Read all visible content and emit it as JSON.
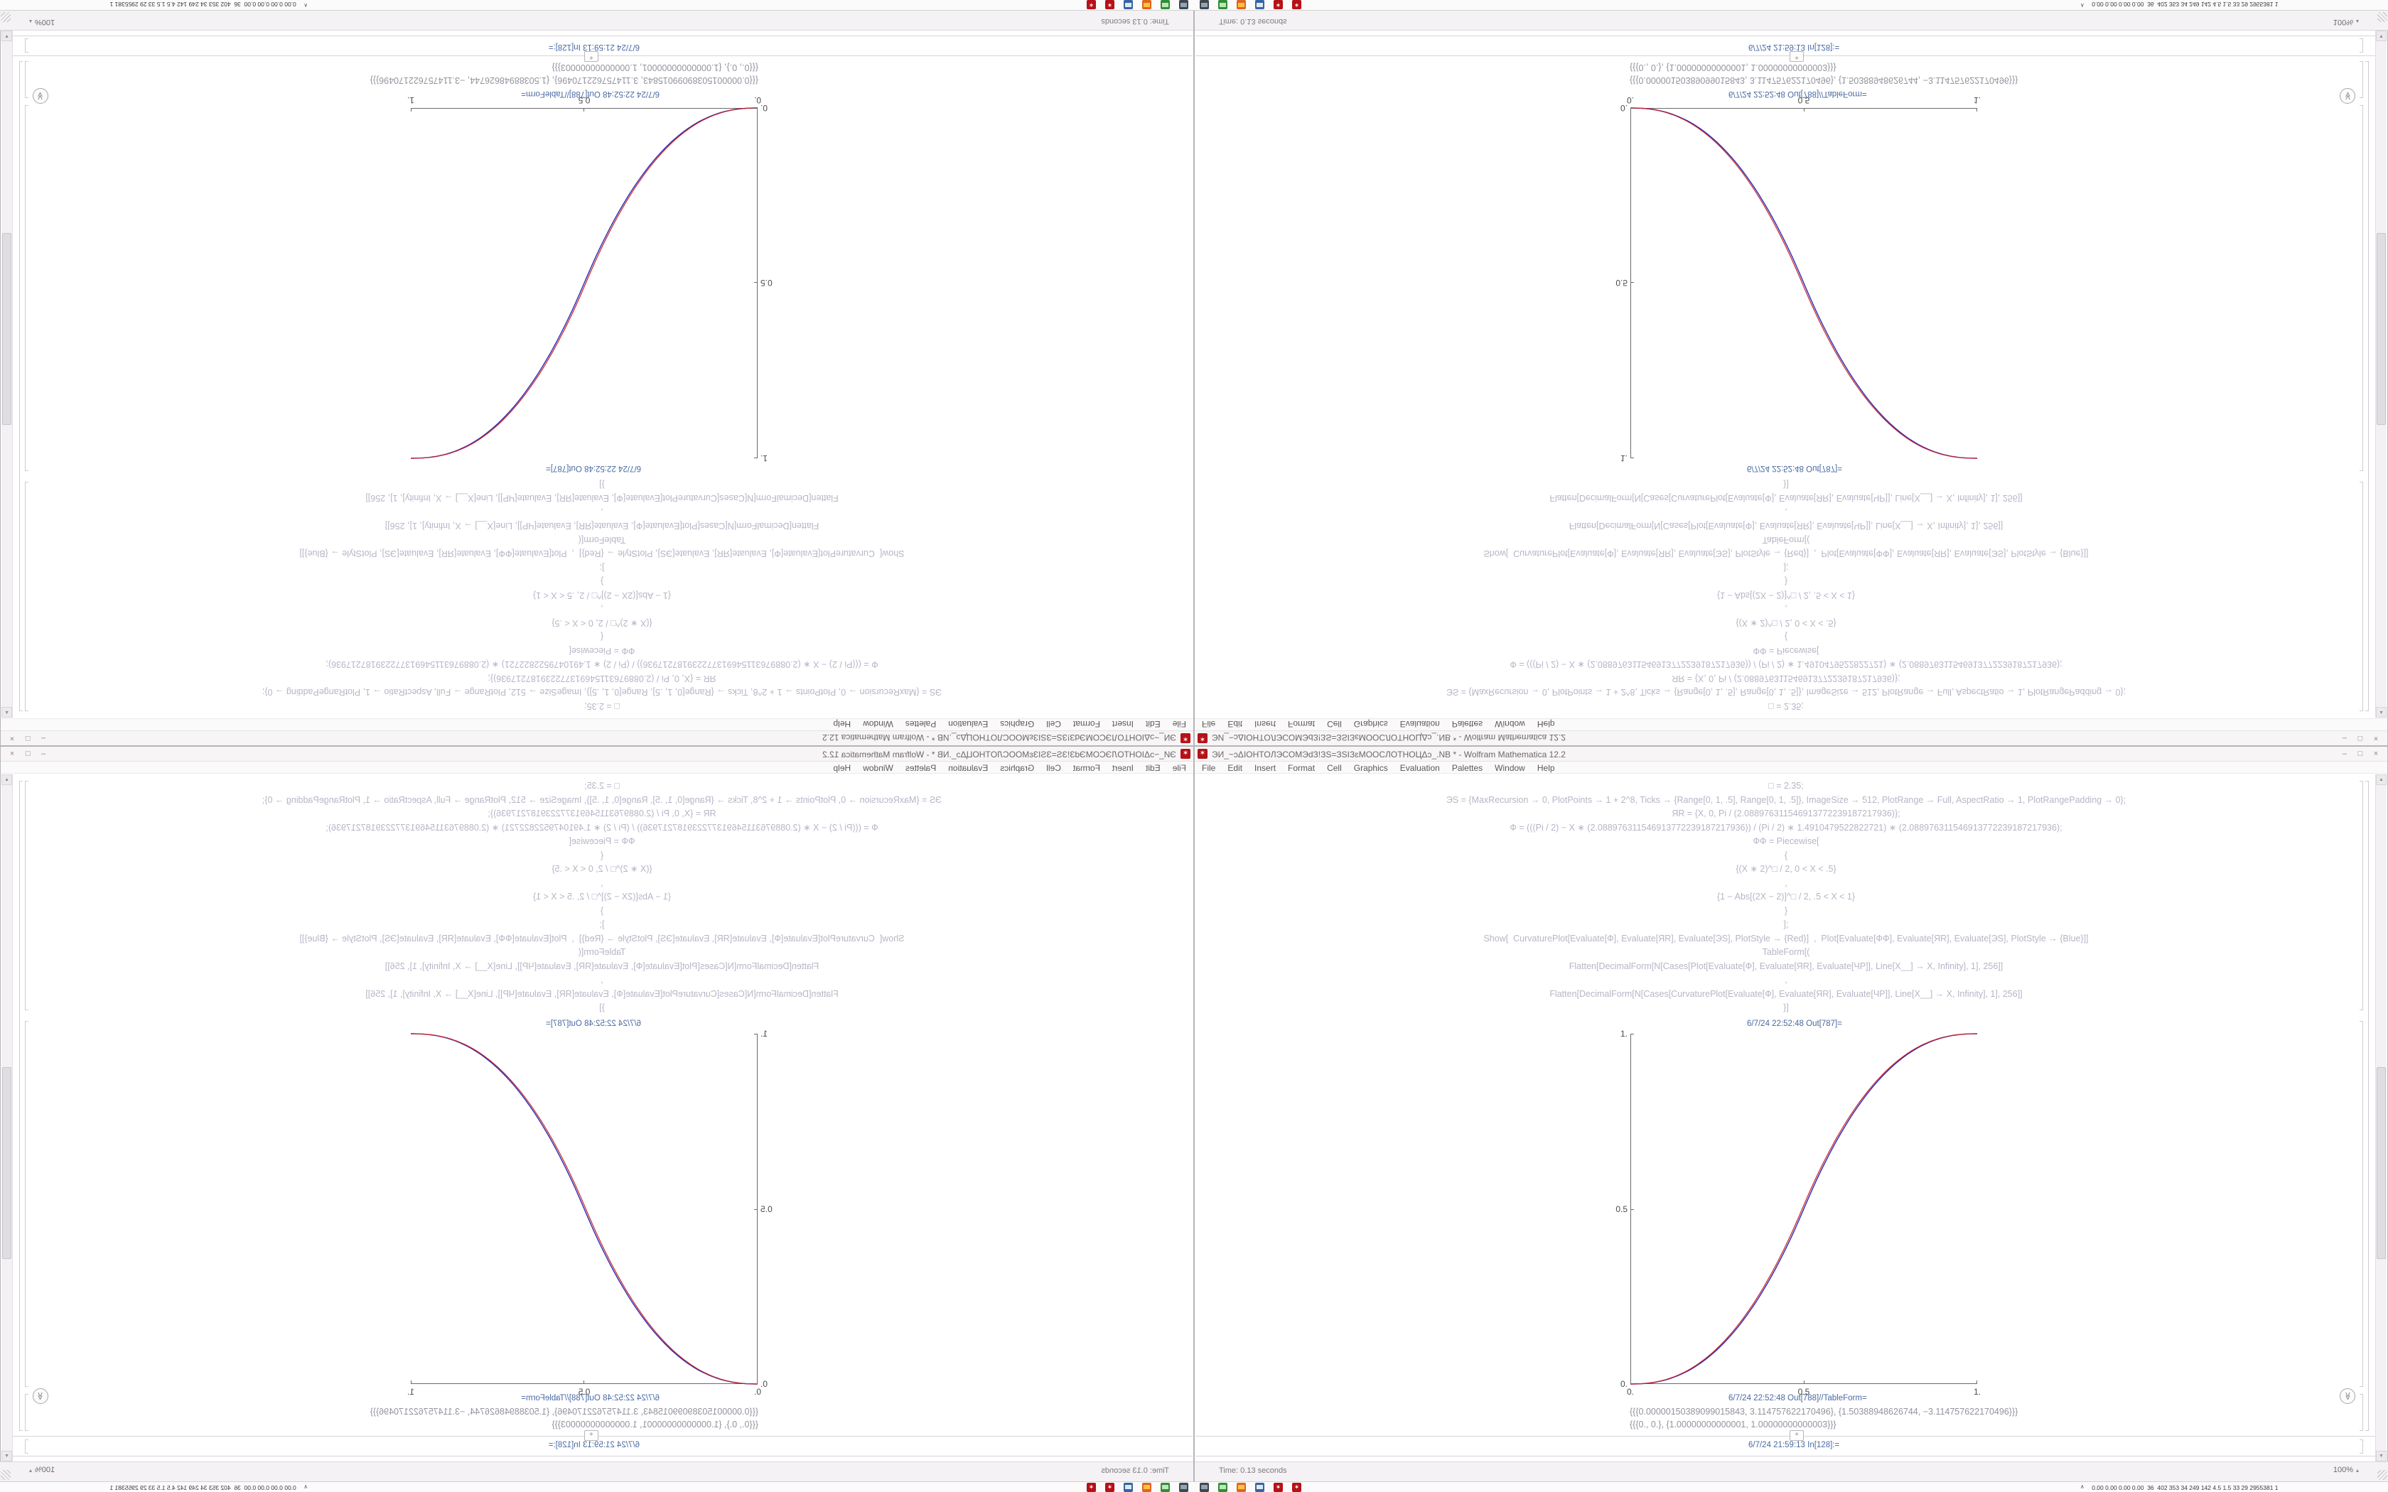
{
  "window": {
    "title": "ЭИ_~ɔΔIOHTOЛЭCOMЭdЗ!ЗS=ЗSIЗɛMOOCЛOTHOЦΔɔ_.NB * - Wolfram Mathematica 12.2",
    "menu": [
      "File",
      "Edit",
      "Insert",
      "Format",
      "Cell",
      "Graphics",
      "Evaluation",
      "Palettes",
      "Window",
      "Help"
    ],
    "controls": {
      "minimize": "–",
      "maximize": "□",
      "close": "×"
    }
  },
  "notebook": {
    "input_lines": [
      "□ = 2.35;",
      "ЭS = {MaxRecursion → 0, PlotPoints → 1 + 2^8, Ticks → {Range[0, 1, .5], Range[0, 1, .5]}, ImageSize → 512, PlotRange → Full, AspectRatio → 1, PlotRangePadding → 0};",
      "ЯR = {X, 0, Pi / (2.088976311546913772239187217936)};",
      "Ф = (((Pi / 2) − X ∗ (2.088976311546913772239187217936)) / (Pi / 2) ∗ 1.4910479522822721) ∗ (2.088976311546913772239187217936);",
      "ФФ = Piecewise[",
      "{",
      "{(X ∗ 2)^□ / 2, 0 < X < .5}",
      ",",
      "{1 − Abs[(2X − 2)]^□ / 2, .5 < X < 1}",
      "}",
      "];",
      "Show[  CurvaturePlot[Evaluate[Ф], Evaluate[ЯR], Evaluate[ЭS], PlotStyle → {Red}]  ,  Plot[Evaluate[ФФ], Evaluate[ЯR], Evaluate[ЭS], PlotStyle → {Blue}]]",
      "TableForm[(",
      "Flatten[DecimalForm[N[Cases[Plot[Evaluate[Ф], Evaluate[ЯR], Evaluate[ЧР]], Line[X__] → X, Infinity], 1], 256]]",
      ",",
      "Flatten[DecimalForm[N[Cases[CurvaturePlot[Evaluate[Ф], Evaluate[ЯR], Evaluate[ЧР]], Line[X__] → X, Infinity], 1], 256]]",
      "}]"
    ],
    "out787_label": "6/7/24 22:52:48 Out[787]=",
    "out788_label": "6/7/24 22:52:48 Out[788]//TableForm=",
    "out788_rows": [
      "{{{0.00000150389099015843, 3.114757622170496}, {1.50388948626744, −3.114757622170496}}}",
      "{{{0., 0.}, {1.00000000000001, 1.00000000000003}}}"
    ],
    "in128_label": "6/7/24 21:59:13 In[128]:=",
    "plus_glyph": "+",
    "chevron_glyph": "≫"
  },
  "chart_data": {
    "type": "line",
    "title": "",
    "xlabel": "",
    "ylabel": "",
    "xlim": [
      0,
      1
    ],
    "ylim": [
      0,
      1
    ],
    "grid": false,
    "legend": "none",
    "function": "piecewise smoothstep: y=(2x)^2.35/2 for 0<x<.5 ; y=1−|2x−2|^2.35/2 for .5<x<1",
    "exponent": 2.35,
    "x_ticks": [
      {
        "label": "0.",
        "v": 0
      },
      {
        "label": "0.5",
        "v": 0.5
      },
      {
        "label": "1.",
        "v": 1
      }
    ],
    "y_ticks": [
      {
        "label": "0.",
        "v": 0
      },
      {
        "label": "0.5",
        "v": 0.5
      },
      {
        "label": "1.",
        "v": 1
      }
    ],
    "series": [
      {
        "name": "Plot (Blue)",
        "color": "#2b2bbb",
        "dx": 0
      },
      {
        "name": "CurvaturePlot (Red)",
        "color": "#cc2222",
        "dx": -2.2
      }
    ]
  },
  "status": {
    "time_text": "Time: 0.13 seconds",
    "zoom_level": "100%",
    "zoom_arrow": "▴"
  },
  "taskbar": {
    "collapse_glyph": "∧",
    "stats_text": "0.00 0.00 0.00 0.00  36  402 353 34 249 142 4.5 1.5 33 29 2955381 1",
    "icons": [
      {
        "name": "computer-icon",
        "bg": "#41464e",
        "fg": "#9fb6c8",
        "glyph": ""
      },
      {
        "name": "terminal-icon",
        "bg": "#2f8f33",
        "fg": "#d7f5d7",
        "glyph": ""
      },
      {
        "name": "browser-icon",
        "bg": "#e2641e",
        "fg": "#ffd24a",
        "glyph": ""
      },
      {
        "name": "files-icon",
        "bg": "#3465a4",
        "fg": "#ffffff",
        "glyph": ""
      },
      {
        "name": "mathematica-icon",
        "bg": "#b61117",
        "fg": "#ffffff",
        "glyph": "✶"
      },
      {
        "name": "mathematica-icon",
        "bg": "#b61117",
        "fg": "#ffffff",
        "glyph": "✶"
      }
    ],
    "graph_blocks": [
      {
        "name": "cpu-graph-yellow",
        "color": "#e0d400",
        "w": 42,
        "h": 2
      },
      {
        "name": "net-graph-blue",
        "color": "#3465a4",
        "w": 16,
        "h": 9
      },
      {
        "name": "net-graph-brown",
        "color": "#8a5a2a",
        "w": 22,
        "h": 7
      },
      {
        "name": "mem-graph-brown",
        "color": "#9a6a34",
        "w": 8,
        "h": 5
      },
      {
        "name": "disk-graph-green",
        "color": "#4caf2a",
        "w": 6,
        "h": 6
      }
    ]
  }
}
